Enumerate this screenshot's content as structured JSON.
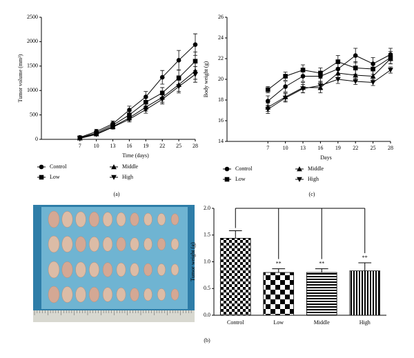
{
  "chart_data": [
    {
      "type": "line",
      "panel": "(a)",
      "xlabel": "Time (days)",
      "ylabel": "Tumor volume (mm³)",
      "x": [
        7,
        10,
        13,
        16,
        19,
        22,
        25,
        28
      ],
      "xlim": [
        0,
        28
      ],
      "xticks": [
        7,
        10,
        13,
        16,
        19,
        22,
        25,
        28
      ],
      "ylim": [
        0,
        2500
      ],
      "yticks": [
        0,
        500,
        1000,
        1500,
        2000,
        2500
      ],
      "legend": "bottom",
      "series": [
        {
          "name": "Control",
          "color": "#000000",
          "marker": "circle",
          "values": [
            40,
            160,
            320,
            600,
            870,
            1270,
            1620,
            1940
          ],
          "errors": [
            15,
            45,
            55,
            80,
            110,
            140,
            200,
            220
          ]
        },
        {
          "name": "Low",
          "color": "#000000",
          "marker": "square",
          "values": [
            30,
            130,
            290,
            500,
            760,
            950,
            1260,
            1600
          ],
          "errors": [
            12,
            35,
            50,
            70,
            90,
            110,
            160,
            190
          ]
        },
        {
          "name": "Middle",
          "color": "#000000",
          "marker": "triangle-up",
          "values": [
            25,
            110,
            260,
            440,
            660,
            860,
            1120,
            1400
          ],
          "errors": [
            10,
            30,
            45,
            60,
            80,
            100,
            140,
            170
          ]
        },
        {
          "name": "High",
          "color": "#000000",
          "marker": "triangle-down",
          "values": [
            20,
            100,
            250,
            410,
            610,
            820,
            1080,
            1330
          ],
          "errors": [
            10,
            30,
            40,
            55,
            75,
            95,
            130,
            160
          ]
        }
      ]
    },
    {
      "type": "line",
      "panel": "(c)",
      "xlabel": "Days",
      "ylabel": "Body weight (g)",
      "x": [
        7,
        10,
        13,
        16,
        19,
        22,
        25,
        28
      ],
      "xlim": [
        0,
        28
      ],
      "xticks": [
        7,
        10,
        13,
        16,
        19,
        22,
        25,
        28
      ],
      "ylim": [
        14,
        26
      ],
      "yticks": [
        14,
        16,
        18,
        20,
        22,
        24,
        26
      ],
      "legend": "bottom",
      "series": [
        {
          "name": "Control",
          "color": "#000000",
          "marker": "circle",
          "values": [
            17.9,
            19.3,
            20.3,
            20.3,
            21.0,
            22.3,
            21.5,
            22.4
          ],
          "errors": [
            0.5,
            0.5,
            0.5,
            0.5,
            0.6,
            0.7,
            0.6,
            0.6
          ]
        },
        {
          "name": "Low",
          "color": "#000000",
          "marker": "square",
          "values": [
            19.0,
            20.3,
            20.9,
            20.6,
            21.7,
            21.1,
            21.0,
            22.1
          ],
          "errors": [
            0.3,
            0.4,
            0.5,
            0.5,
            0.6,
            0.6,
            0.5,
            0.6
          ]
        },
        {
          "name": "Middle",
          "color": "#000000",
          "marker": "triangle-up",
          "values": [
            17.3,
            18.3,
            19.2,
            19.2,
            20.6,
            20.4,
            20.3,
            22.0
          ],
          "errors": [
            0.4,
            0.4,
            0.5,
            0.5,
            0.5,
            0.5,
            0.5,
            0.5
          ]
        },
        {
          "name": "High",
          "color": "#000000",
          "marker": "triangle-down",
          "values": [
            17.1,
            18.2,
            19.1,
            19.4,
            20.0,
            19.8,
            19.7,
            20.9
          ],
          "errors": [
            0.4,
            0.4,
            0.4,
            0.4,
            0.4,
            0.3,
            0.3,
            0.3
          ]
        }
      ]
    },
    {
      "type": "bar",
      "panel": "(b)",
      "ylabel": "Tumor weight (g)",
      "categories": [
        "Control",
        "Low",
        "Middle",
        "High"
      ],
      "values": [
        1.44,
        0.8,
        0.8,
        0.83
      ],
      "errors": [
        0.14,
        0.07,
        0.07,
        0.15
      ],
      "annotations": [
        null,
        "**",
        "**",
        "**"
      ],
      "patterns": [
        "checker-small",
        "checker-large",
        "horizontal",
        "vertical"
      ],
      "ylim": [
        0,
        2.0
      ],
      "yticks": [
        {
          "value": 0,
          "label": "0.0"
        },
        0.5,
        {
          "value": 1.0,
          "label": "1.0"
        },
        1.5,
        {
          "value": 2.0,
          "label": "2.0"
        }
      ]
    }
  ]
}
